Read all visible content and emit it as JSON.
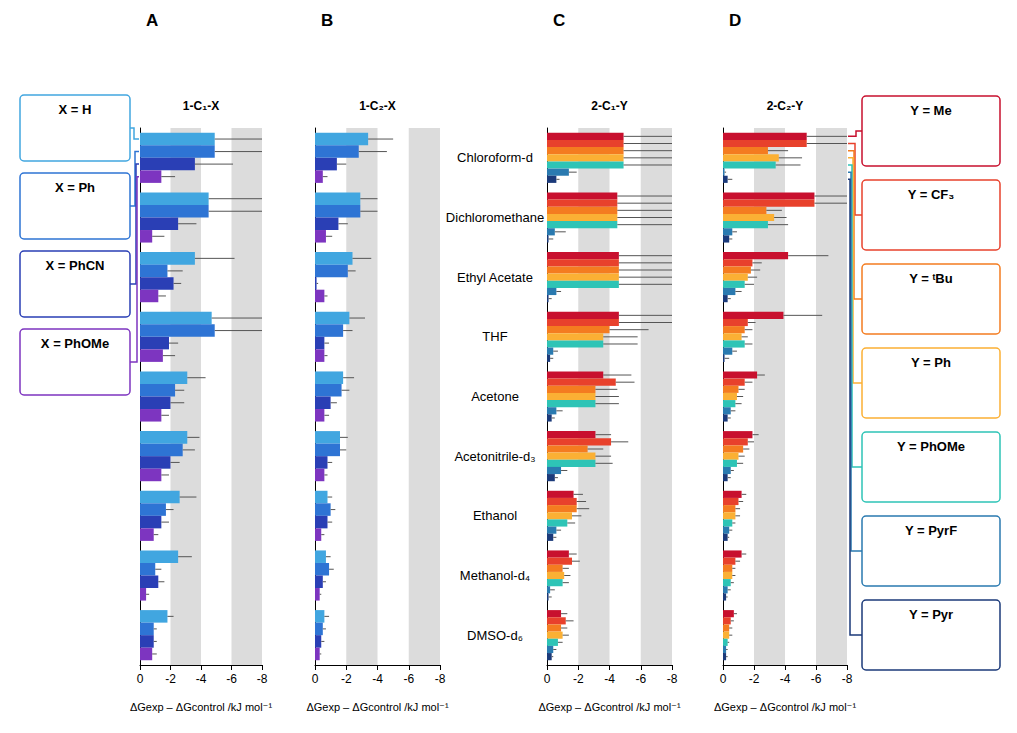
{
  "chart_data": [
    {
      "type": "bar",
      "orientation": "horizontal",
      "title": "A",
      "subtitle": "1-C₁-X",
      "categories": [
        "Chloroform-d",
        "Dichloromethane",
        "Ethyl Acetate",
        "THF",
        "Acetone",
        "Acetonitrile-d₃",
        "Ethanol",
        "Methanol-d₄",
        "DMSO-d₆"
      ],
      "x_label": "ΔGexp – ΔGcontrol /kJ mol⁻¹",
      "xlim": [
        0,
        -8
      ],
      "xticks": [
        0,
        -2,
        -4,
        -6,
        -8
      ],
      "grid": true,
      "legend": "left",
      "tick_labels": "x",
      "series": [
        {
          "name": "X = H",
          "color": "#41a6e0",
          "values": [
            -4.9,
            -4.5,
            -3.6,
            -4.7,
            -3.1,
            -3.1,
            -2.6,
            -2.5,
            -1.8
          ],
          "errors": [
            3.1,
            3.5,
            2.6,
            3.3,
            1.2,
            0.8,
            1.1,
            0.9,
            0.4
          ]
        },
        {
          "name": "X = Ph",
          "color": "#2e74d4",
          "values": [
            -4.9,
            -4.5,
            -1.8,
            -4.9,
            -2.3,
            -2.8,
            -1.7,
            -1.0,
            -0.9
          ],
          "errors": [
            3.1,
            3.5,
            1.0,
            3.1,
            0.6,
            0.8,
            0.5,
            0.4,
            0.2
          ]
        },
        {
          "name": "X = PhCN",
          "color": "#2a3fb5",
          "values": [
            -3.6,
            -2.5,
            -2.2,
            -1.9,
            -2.0,
            -2.0,
            -1.4,
            -1.2,
            -0.9
          ],
          "errors": [
            2.5,
            1.2,
            0.5,
            0.6,
            0.9,
            0.6,
            0.5,
            0.4,
            0.2
          ]
        },
        {
          "name": "X = PhOMe",
          "color": "#7d35c0",
          "values": [
            -1.4,
            -0.8,
            -1.2,
            -1.5,
            -1.4,
            -1.4,
            -0.9,
            -0.4,
            -0.8
          ],
          "errors": [
            0.9,
            0.8,
            0.5,
            0.8,
            0.5,
            0.5,
            0.3,
            0.2,
            0.3
          ]
        }
      ]
    },
    {
      "type": "bar",
      "orientation": "horizontal",
      "title": "B",
      "subtitle": "1-C₂-X",
      "categories": [
        "Chloroform-d",
        "Dichloromethane",
        "Ethyl Acetate",
        "THF",
        "Acetone",
        "Acetonitrile-d₃",
        "Ethanol",
        "Methanol-d₄",
        "DMSO-d₆"
      ],
      "x_label": "ΔGexp – ΔGcontrol /kJ mol⁻¹",
      "xlim": [
        0,
        -8
      ],
      "xticks": [
        0,
        -2,
        -4,
        -6,
        -8
      ],
      "grid": true,
      "tick_labels": "x",
      "series": [
        {
          "name": "X = H",
          "color": "#41a6e0",
          "values": [
            -3.4,
            -2.9,
            -2.4,
            -2.2,
            -1.8,
            -1.6,
            -0.8,
            -0.7,
            -0.6
          ],
          "errors": [
            1.6,
            1.1,
            1.2,
            1.0,
            0.7,
            0.5,
            0.3,
            0.3,
            0.3
          ]
        },
        {
          "name": "X = Ph",
          "color": "#2e74d4",
          "values": [
            -2.8,
            -2.9,
            -2.1,
            -1.8,
            -1.7,
            -1.6,
            -1.0,
            -0.9,
            -0.5
          ],
          "errors": [
            1.8,
            1.1,
            0.5,
            0.6,
            0.5,
            0.4,
            0.3,
            0.3,
            0.2
          ]
        },
        {
          "name": "X = PhCN",
          "color": "#2a3fb5",
          "values": [
            -1.4,
            -1.5,
            -0.1,
            -0.6,
            -1.0,
            -0.8,
            -0.8,
            -0.5,
            -0.4
          ],
          "errors": [
            0.6,
            0.6,
            0.1,
            0.3,
            0.4,
            0.3,
            0.3,
            0.2,
            0.2
          ]
        },
        {
          "name": "X = PhOMe",
          "color": "#7d35c0",
          "values": [
            -0.5,
            -0.7,
            -0.6,
            -0.6,
            -0.6,
            -0.6,
            -0.4,
            -0.3,
            -0.3
          ],
          "errors": [
            0.3,
            0.4,
            0.2,
            0.2,
            0.3,
            0.2,
            0.2,
            0.1,
            0.1
          ]
        }
      ]
    },
    {
      "type": "bar",
      "orientation": "horizontal",
      "title": "C",
      "subtitle": "2-C₁-Y",
      "categories": [
        "Chloroform-d",
        "Dichloromethane",
        "Ethyl Acetate",
        "THF",
        "Acetone",
        "Acetonitrile-d₃",
        "Ethanol",
        "Methanol-d₄",
        "DMSO-d₆"
      ],
      "x_label": "ΔGexp – ΔGcontrol /kJ mol⁻¹",
      "xlim": [
        0,
        -8
      ],
      "xticks": [
        0,
        -2,
        -4,
        -6,
        -8
      ],
      "grid": true,
      "tick_labels": true,
      "series": [
        {
          "name": "Y = Me",
          "color": "#c8102e",
          "values": [
            -4.9,
            -4.5,
            -4.6,
            -4.6,
            -3.6,
            -3.1,
            -1.7,
            -1.4,
            -0.9
          ],
          "errors": [
            3.1,
            3.5,
            3.4,
            3.4,
            1.8,
            1.0,
            0.6,
            0.5,
            0.4
          ]
        },
        {
          "name": "Y = CF₃",
          "color": "#e8412c",
          "values": [
            -4.9,
            -4.5,
            -4.6,
            -4.6,
            -4.4,
            -4.1,
            -1.9,
            -1.6,
            -1.2
          ],
          "errors": [
            3.1,
            3.5,
            3.4,
            3.4,
            1.2,
            1.1,
            0.6,
            0.5,
            0.5
          ]
        },
        {
          "name": "Y = ᵗBu",
          "color": "#f47c20",
          "values": [
            -4.9,
            -4.5,
            -4.6,
            -4.0,
            -3.1,
            -2.6,
            -1.9,
            -1.0,
            -0.9
          ],
          "errors": [
            3.1,
            3.5,
            3.4,
            2.5,
            1.4,
            1.0,
            0.8,
            0.4,
            0.4
          ]
        },
        {
          "name": "Y = Ph",
          "color": "#fbb034",
          "values": [
            -4.9,
            -4.5,
            -4.6,
            -3.6,
            -3.1,
            -3.1,
            -1.6,
            -1.1,
            -1.0
          ],
          "errors": [
            3.1,
            3.5,
            3.4,
            2.2,
            1.5,
            1.0,
            0.6,
            0.4,
            0.4
          ]
        },
        {
          "name": "Y = PhOMe",
          "color": "#2ec4b6",
          "values": [
            -4.9,
            -4.5,
            -4.6,
            -3.6,
            -3.1,
            -3.1,
            -1.3,
            -1.0,
            -0.7
          ],
          "errors": [
            3.1,
            3.5,
            3.4,
            2.2,
            1.5,
            1.1,
            0.5,
            0.4,
            0.3
          ]
        },
        {
          "name": "Y = PyrF",
          "color": "#2a7ab0",
          "values": [
            -1.4,
            -0.5,
            -0.6,
            -0.4,
            -0.6,
            -0.9,
            -0.6,
            -0.2,
            -0.4
          ],
          "errors": [
            0.5,
            0.7,
            0.3,
            0.3,
            0.4,
            0.4,
            0.3,
            0.3,
            0.2
          ]
        },
        {
          "name": "Y = Pyr",
          "color": "#1b3a7a",
          "values": [
            -0.6,
            -0.1,
            -0.1,
            -0.2,
            -0.3,
            -0.5,
            -0.4,
            -0.1,
            -0.3
          ],
          "errors": [
            0.2,
            0.3,
            0.2,
            0.2,
            0.2,
            0.2,
            0.2,
            0.2,
            0.1
          ]
        }
      ]
    },
    {
      "type": "bar",
      "orientation": "horizontal",
      "title": "D",
      "subtitle": "2-C₂-Y",
      "categories": [
        "Chloroform-d",
        "Dichloromethane",
        "Ethyl Acetate",
        "THF",
        "Acetone",
        "Acetonitrile-d₃",
        "Ethanol",
        "Methanol-d₄",
        "DMSO-d₆"
      ],
      "x_label": "ΔGexp – ΔGcontrol /kJ mol⁻¹",
      "xlim": [
        0,
        -8
      ],
      "xticks": [
        0,
        -2,
        -4,
        -6,
        -8
      ],
      "grid": true,
      "legend": "right",
      "tick_labels": "x",
      "series": [
        {
          "name": "Y = Me",
          "color": "#c8102e",
          "values": [
            -5.4,
            -5.9,
            -4.2,
            -3.9,
            -2.2,
            -1.9,
            -1.2,
            -1.2,
            -0.7
          ],
          "errors": [
            2.6,
            2.1,
            2.6,
            2.5,
            0.5,
            0.4,
            0.3,
            0.3,
            0.2
          ]
        },
        {
          "name": "Y = CF₃",
          "color": "#e8412c",
          "values": [
            -5.4,
            -5.9,
            -1.9,
            -1.6,
            -1.4,
            -1.6,
            -1.0,
            -0.8,
            -0.5
          ],
          "errors": [
            2.6,
            2.1,
            0.6,
            0.5,
            0.5,
            0.4,
            0.3,
            0.3,
            0.2
          ]
        },
        {
          "name": "Y = ᵗBu",
          "color": "#f47c20",
          "values": [
            -2.9,
            -2.8,
            -1.8,
            -1.4,
            -1.0,
            -1.3,
            -0.8,
            -0.6,
            -0.4
          ],
          "errors": [
            1.3,
            1.0,
            0.6,
            0.5,
            0.4,
            0.4,
            0.3,
            0.2,
            0.2
          ]
        },
        {
          "name": "Y = Ph",
          "color": "#fbb034",
          "values": [
            -3.6,
            -3.3,
            -1.6,
            -1.2,
            -0.9,
            -1.0,
            -0.8,
            -0.6,
            -0.4
          ],
          "errors": [
            1.5,
            0.8,
            0.6,
            0.4,
            0.4,
            0.4,
            0.3,
            0.2,
            0.2
          ]
        },
        {
          "name": "Y = PhOMe",
          "color": "#2ec4b6",
          "values": [
            -3.4,
            -2.9,
            -1.4,
            -1.4,
            -0.8,
            -0.9,
            -0.6,
            -0.5,
            -0.3
          ],
          "errors": [
            1.6,
            1.3,
            0.6,
            0.5,
            0.4,
            0.4,
            0.2,
            0.2,
            0.1
          ]
        },
        {
          "name": "Y = PyrF",
          "color": "#2a7ab0",
          "values": [
            -0.1,
            -0.6,
            -0.8,
            -0.6,
            -0.5,
            -0.5,
            -0.4,
            -0.3,
            -0.2
          ],
          "errors": [
            0.1,
            0.3,
            0.4,
            0.3,
            0.3,
            0.2,
            0.2,
            0.2,
            0.1
          ]
        },
        {
          "name": "Y = Pyr",
          "color": "#1b3a7a",
          "values": [
            -0.3,
            -0.4,
            -0.3,
            -0.1,
            -0.3,
            -0.3,
            -0.3,
            -0.2,
            -0.2
          ],
          "errors": [
            0.3,
            0.2,
            0.2,
            0.3,
            0.2,
            0.2,
            0.1,
            0.1,
            0.1
          ]
        }
      ]
    }
  ]
}
